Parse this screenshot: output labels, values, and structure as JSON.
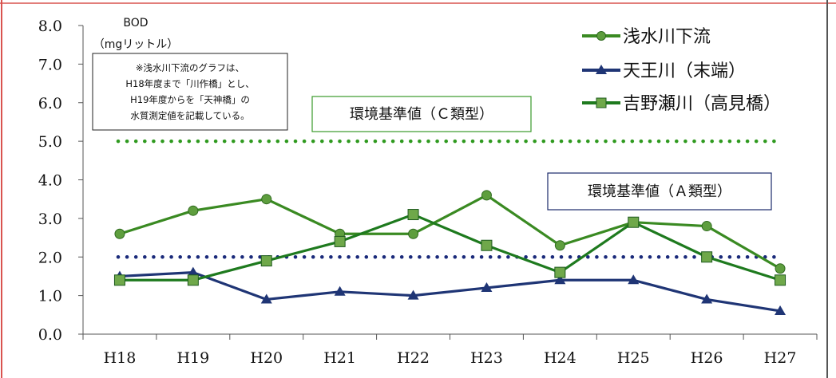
{
  "chart_data": {
    "type": "line",
    "ylabel": "BOD",
    "yunit": "（mgリットル）",
    "ylim": [
      0,
      8
    ],
    "yticks": [
      "0.0",
      "1.0",
      "2.0",
      "3.0",
      "4.0",
      "5.0",
      "6.0",
      "7.0",
      "8.0"
    ],
    "categories": [
      "H18",
      "H19",
      "H20",
      "H21",
      "H22",
      "H23",
      "H24",
      "H25",
      "H26",
      "H27"
    ],
    "grid": false,
    "legend_position": "top-right",
    "series": [
      {
        "name": "浅水川下流",
        "marker": "circle",
        "color": "#3a8a22",
        "values": [
          2.6,
          3.2,
          3.5,
          2.6,
          2.6,
          3.6,
          2.3,
          2.9,
          2.8,
          1.7
        ]
      },
      {
        "name": "天王川（末端）",
        "marker": "triangle",
        "color": "#1f3575",
        "values": [
          1.5,
          1.6,
          0.9,
          1.1,
          1.0,
          1.2,
          1.4,
          1.4,
          0.9,
          0.6
        ]
      },
      {
        "name": "吉野瀬川（高見橋）",
        "marker": "square",
        "color": "#1e7a1e",
        "values": [
          1.4,
          1.4,
          1.9,
          2.4,
          3.1,
          2.3,
          1.6,
          2.9,
          2.0,
          1.4
        ]
      }
    ],
    "reference_lines": [
      {
        "label": "環境基準値（Ｃ類型）",
        "value": 5.0,
        "color": "#2f9a1f"
      },
      {
        "label": "環境基準値（Ａ類型）",
        "value": 2.0,
        "color": "#1a2a7a"
      }
    ],
    "note": [
      "※浅水川下流のグラフは、",
      "H18年度まで「川作橋」とし、",
      "H19年度からを「天神橋」の",
      "水質測定値を記載している。"
    ]
  }
}
